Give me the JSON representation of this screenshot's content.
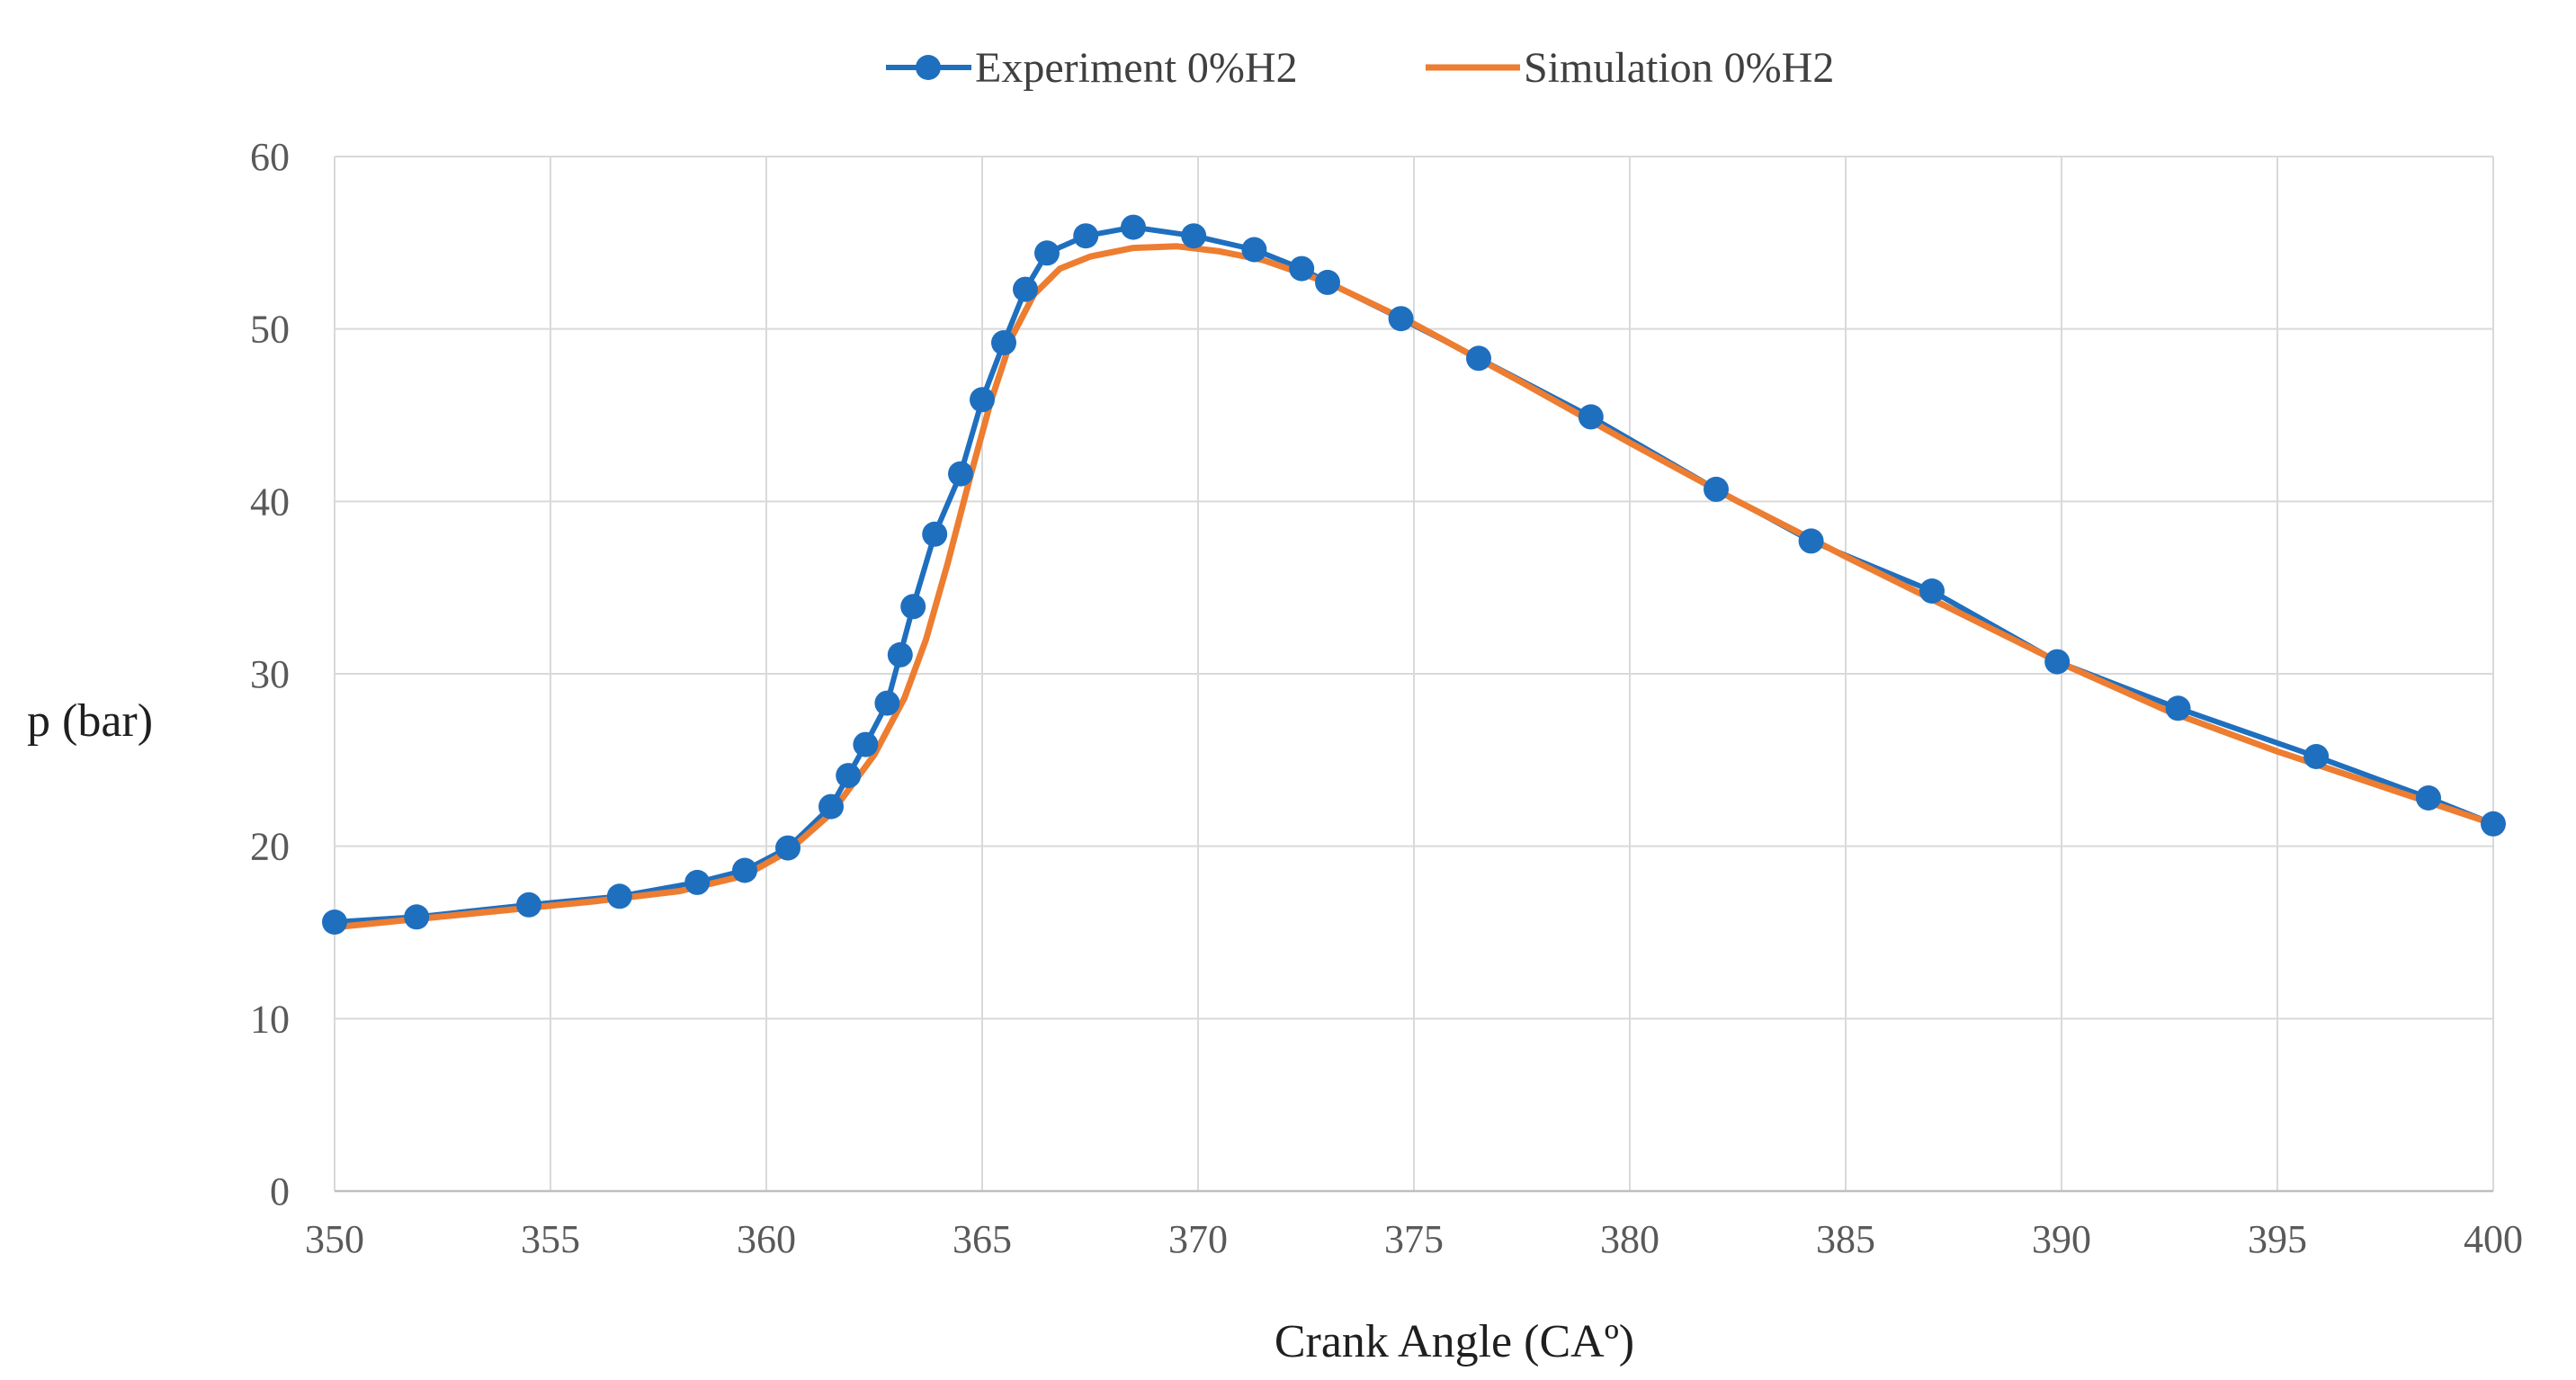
{
  "chart_data": {
    "type": "line",
    "title": "",
    "xlabel": "Crank Angle (CAº)",
    "ylabel": "p (bar)",
    "xlim": [
      350,
      400
    ],
    "ylim": [
      0,
      60
    ],
    "x_ticks": [
      350,
      355,
      360,
      365,
      370,
      375,
      380,
      385,
      390,
      395,
      400
    ],
    "y_ticks": [
      0,
      10,
      20,
      30,
      40,
      50,
      60
    ],
    "grid": true,
    "legend_position": "top-center",
    "series": [
      {
        "name": "Experiment 0%H2",
        "color": "#1F6FBF",
        "marker": "circle",
        "points": [
          [
            350.0,
            15.6
          ],
          [
            351.9,
            15.9
          ],
          [
            354.5,
            16.6
          ],
          [
            356.6,
            17.1
          ],
          [
            358.4,
            17.9
          ],
          [
            359.5,
            18.6
          ],
          [
            360.5,
            19.9
          ],
          [
            361.5,
            22.3
          ],
          [
            361.9,
            24.1
          ],
          [
            362.3,
            25.9
          ],
          [
            362.8,
            28.3
          ],
          [
            363.1,
            31.1
          ],
          [
            363.4,
            33.9
          ],
          [
            363.9,
            38.1
          ],
          [
            364.5,
            41.6
          ],
          [
            365.0,
            45.9
          ],
          [
            365.5,
            49.2
          ],
          [
            366.0,
            52.3
          ],
          [
            366.5,
            54.4
          ],
          [
            367.4,
            55.4
          ],
          [
            368.5,
            55.9
          ],
          [
            369.9,
            55.4
          ],
          [
            371.3,
            54.6
          ],
          [
            372.4,
            53.5
          ],
          [
            373.0,
            52.7
          ],
          [
            374.7,
            50.6
          ],
          [
            376.5,
            48.3
          ],
          [
            379.1,
            44.9
          ],
          [
            382.0,
            40.7
          ],
          [
            384.2,
            37.7
          ],
          [
            387.0,
            34.8
          ],
          [
            389.9,
            30.7
          ],
          [
            392.7,
            28.0
          ],
          [
            395.9,
            25.2
          ],
          [
            398.5,
            22.8
          ],
          [
            400.0,
            21.3
          ]
        ]
      },
      {
        "name": "Simulation 0%H2",
        "color": "#ED7D31",
        "marker": "none",
        "points": [
          [
            350.0,
            15.3
          ],
          [
            352.0,
            15.8
          ],
          [
            354.0,
            16.3
          ],
          [
            356.0,
            16.8
          ],
          [
            358.0,
            17.4
          ],
          [
            359.5,
            18.3
          ],
          [
            360.5,
            19.7
          ],
          [
            361.5,
            21.9
          ],
          [
            362.5,
            25.3
          ],
          [
            363.2,
            28.6
          ],
          [
            363.7,
            32.0
          ],
          [
            364.2,
            36.4
          ],
          [
            364.7,
            41.2
          ],
          [
            365.2,
            45.8
          ],
          [
            365.7,
            49.6
          ],
          [
            366.2,
            52.0
          ],
          [
            366.8,
            53.5
          ],
          [
            367.5,
            54.2
          ],
          [
            368.5,
            54.7
          ],
          [
            369.5,
            54.8
          ],
          [
            370.5,
            54.5
          ],
          [
            371.5,
            54.0
          ],
          [
            373.0,
            52.7
          ],
          [
            375.0,
            50.3
          ],
          [
            377.5,
            46.9
          ],
          [
            380.0,
            43.4
          ],
          [
            382.5,
            40.0
          ],
          [
            385.0,
            36.8
          ],
          [
            387.5,
            33.7
          ],
          [
            390.0,
            30.6
          ],
          [
            392.5,
            27.8
          ],
          [
            395.0,
            25.5
          ],
          [
            397.5,
            23.4
          ],
          [
            400.0,
            21.3
          ]
        ]
      }
    ]
  }
}
